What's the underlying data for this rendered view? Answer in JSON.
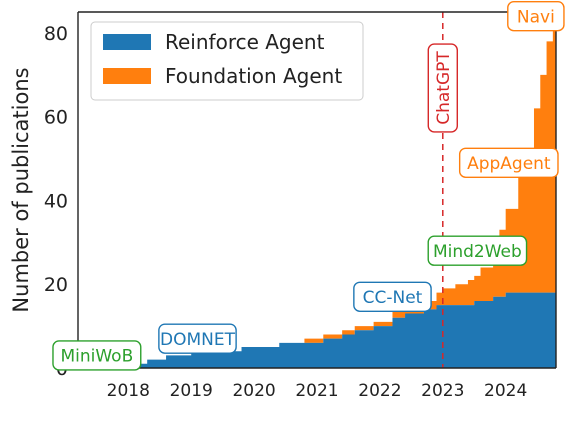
{
  "chart_data": {
    "type": "area",
    "title": "",
    "xlabel": "",
    "ylabel": "Number of publications",
    "xlim": [
      2017.2,
      2024.8
    ],
    "ylim": [
      0,
      85
    ],
    "x_ticks": [
      2018,
      2019,
      2020,
      2021,
      2022,
      2023,
      2024
    ],
    "y_ticks": [
      0,
      20,
      40,
      60,
      80
    ],
    "grid": false,
    "legend_position": "top-left",
    "stacked": true,
    "series": [
      {
        "name": "Reinforce Agent",
        "color": "#1f77b4",
        "points": [
          [
            2017.2,
            0
          ],
          [
            2018.0,
            1
          ],
          [
            2018.3,
            2
          ],
          [
            2018.6,
            3
          ],
          [
            2019.0,
            4
          ],
          [
            2019.4,
            4
          ],
          [
            2019.8,
            5
          ],
          [
            2020.2,
            5
          ],
          [
            2020.4,
            6
          ],
          [
            2020.9,
            6
          ],
          [
            2021.1,
            7
          ],
          [
            2021.4,
            8
          ],
          [
            2021.6,
            9
          ],
          [
            2021.9,
            10
          ],
          [
            2022.2,
            12
          ],
          [
            2022.4,
            13
          ],
          [
            2022.7,
            14
          ],
          [
            2022.9,
            15
          ],
          [
            2023.2,
            15
          ],
          [
            2023.5,
            16
          ],
          [
            2023.8,
            17
          ],
          [
            2024.0,
            18
          ],
          [
            2024.2,
            18
          ],
          [
            2024.8,
            18
          ]
        ]
      },
      {
        "name": "Foundation Agent",
        "color": "#ff7f0e",
        "points": [
          [
            2017.2,
            0
          ],
          [
            2018.0,
            0
          ],
          [
            2019.0,
            0
          ],
          [
            2020.0,
            0
          ],
          [
            2020.6,
            0
          ],
          [
            2020.8,
            1
          ],
          [
            2021.3,
            1
          ],
          [
            2021.8,
            1
          ],
          [
            2022.2,
            2
          ],
          [
            2022.6,
            2
          ],
          [
            2022.9,
            3
          ],
          [
            2023.0,
            4
          ],
          [
            2023.2,
            5
          ],
          [
            2023.4,
            6
          ],
          [
            2023.6,
            8
          ],
          [
            2023.8,
            12
          ],
          [
            2023.9,
            16
          ],
          [
            2024.0,
            20
          ],
          [
            2024.2,
            28
          ],
          [
            2024.3,
            34
          ],
          [
            2024.45,
            44
          ],
          [
            2024.55,
            52
          ],
          [
            2024.65,
            60
          ],
          [
            2024.75,
            66
          ],
          [
            2024.8,
            67
          ]
        ]
      }
    ],
    "vlines": [
      {
        "x": 2023.0,
        "color": "#d62728",
        "style": "dashed",
        "label": "ChatGPT"
      }
    ],
    "annotations": [
      {
        "text": "MiniWoB",
        "x": 2017.5,
        "y": 3,
        "color": "#2ca02c"
      },
      {
        "text": "DOMNET",
        "x": 2019.1,
        "y": 7,
        "color": "#1f77b4"
      },
      {
        "text": "CC-Net",
        "x": 2022.2,
        "y": 17,
        "color": "#1f77b4"
      },
      {
        "text": "Mind2Web",
        "x": 2023.55,
        "y": 28,
        "color": "#2ca02c"
      },
      {
        "text": "AppAgent",
        "x": 2024.05,
        "y": 49,
        "color": "#ff7f0e"
      },
      {
        "text": "Navi",
        "x": 2024.48,
        "y": 84,
        "color": "#ff7f0e"
      }
    ]
  }
}
